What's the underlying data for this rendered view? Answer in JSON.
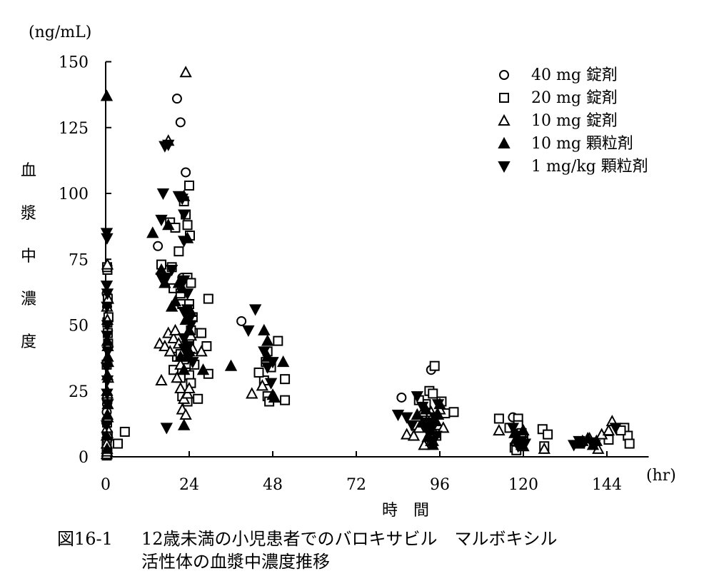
{
  "chart_data": {
    "type": "scatter",
    "title": "",
    "unit_label": "(ng/mL)",
    "xlabel": "時　間",
    "xunit": "(hr)",
    "ylabel": "血漿中濃度",
    "xlim": [
      0,
      156
    ],
    "ylim": [
      0,
      150
    ],
    "xticks": [
      0,
      24,
      48,
      72,
      96,
      120,
      144
    ],
    "yticks": [
      0,
      25,
      50,
      75,
      100,
      125,
      150
    ],
    "grid": false,
    "legend_position": "top-right",
    "series": [
      {
        "name": "40 mg 錠剤",
        "marker": "circle-open",
        "points": [
          [
            0.3,
            1
          ],
          [
            0.3,
            3
          ],
          [
            0.4,
            6
          ],
          [
            0.3,
            9
          ],
          [
            0.2,
            13
          ],
          [
            0.3,
            17
          ],
          [
            0.4,
            20
          ],
          [
            0.3,
            22
          ],
          [
            0.5,
            52
          ],
          [
            0.4,
            57
          ],
          [
            0.3,
            62
          ],
          [
            15,
            80
          ],
          [
            20.5,
            136
          ],
          [
            21.5,
            127
          ],
          [
            23,
            108
          ],
          [
            22,
            68
          ],
          [
            39,
            51.5
          ],
          [
            85,
            22.5
          ],
          [
            93.5,
            33
          ],
          [
            117,
            15
          ]
        ]
      },
      {
        "name": "20 mg 錠剤",
        "marker": "square-open",
        "points": [
          [
            0.3,
            0.5
          ],
          [
            0.4,
            1
          ],
          [
            0.5,
            2
          ],
          [
            0.3,
            4
          ],
          [
            0.6,
            8
          ],
          [
            0.4,
            13
          ],
          [
            0.5,
            22
          ],
          [
            0.3,
            35
          ],
          [
            0.7,
            43
          ],
          [
            0.6,
            47
          ],
          [
            0.5,
            51
          ],
          [
            0.8,
            53
          ],
          [
            0.6,
            60
          ],
          [
            0.5,
            71
          ],
          [
            0.4,
            72
          ],
          [
            3.5,
            5
          ],
          [
            5.5,
            9.5
          ],
          [
            16,
            73
          ],
          [
            18.5,
            89
          ],
          [
            20,
            87
          ],
          [
            21,
            78
          ],
          [
            22.5,
            97
          ],
          [
            23,
            92
          ],
          [
            23.5,
            88
          ],
          [
            24,
            103
          ],
          [
            24.2,
            84
          ],
          [
            19,
            72
          ],
          [
            19.5,
            64
          ],
          [
            21.5,
            62
          ],
          [
            23.5,
            68
          ],
          [
            24.5,
            66
          ],
          [
            22,
            58
          ],
          [
            24,
            58
          ],
          [
            25,
            53
          ],
          [
            26,
            47
          ],
          [
            27.5,
            47
          ],
          [
            29.5,
            60
          ],
          [
            24.5,
            48
          ],
          [
            24,
            44
          ],
          [
            23,
            40
          ],
          [
            19.5,
            33
          ],
          [
            20.5,
            38
          ],
          [
            21.5,
            39
          ],
          [
            22.5,
            37
          ],
          [
            23,
            32
          ],
          [
            24,
            31
          ],
          [
            24.5,
            28
          ],
          [
            25.5,
            35
          ],
          [
            26.5,
            22
          ],
          [
            29,
            42
          ],
          [
            29.5,
            31.5
          ],
          [
            22,
            23
          ],
          [
            23.5,
            21
          ],
          [
            21.5,
            30
          ],
          [
            46,
            36
          ],
          [
            46.5,
            40
          ],
          [
            47.5,
            34
          ],
          [
            49.5,
            44
          ],
          [
            51.5,
            29.5
          ],
          [
            51.5,
            21.5
          ],
          [
            46.5,
            23
          ],
          [
            45.5,
            29
          ],
          [
            44,
            32
          ],
          [
            47,
            21
          ],
          [
            93,
            25
          ],
          [
            94.5,
            34.5
          ],
          [
            94,
            24
          ],
          [
            96.5,
            21
          ],
          [
            100,
            17
          ],
          [
            92,
            20
          ],
          [
            90,
            21.5
          ],
          [
            89,
            12
          ],
          [
            95,
            8
          ],
          [
            93,
            6
          ],
          [
            97.5,
            16.5
          ],
          [
            113,
            14.5
          ],
          [
            116,
            11
          ],
          [
            117.5,
            3.5
          ],
          [
            118.5,
            14.5
          ],
          [
            118.5,
            12
          ],
          [
            119.5,
            9
          ],
          [
            120,
            7
          ],
          [
            118,
            2.5
          ],
          [
            125.5,
            10.5
          ],
          [
            126,
            4
          ],
          [
            127,
            8.5
          ],
          [
            149,
            11
          ],
          [
            150,
            8
          ],
          [
            150.5,
            5
          ],
          [
            148,
            10
          ],
          [
            144.5,
            6.5
          ]
        ]
      },
      {
        "name": "10 mg 錠剤",
        "marker": "triangle-open",
        "points": [
          [
            0.3,
            1
          ],
          [
            0.4,
            2
          ],
          [
            0.3,
            5
          ],
          [
            0.5,
            9
          ],
          [
            0.4,
            11
          ],
          [
            0.6,
            15
          ],
          [
            0.5,
            24
          ],
          [
            0.7,
            30
          ],
          [
            0.6,
            42
          ],
          [
            0.5,
            52
          ],
          [
            0.4,
            57
          ],
          [
            0.7,
            60
          ],
          [
            0.5,
            73
          ],
          [
            15.5,
            43
          ],
          [
            16,
            29
          ],
          [
            17,
            42
          ],
          [
            18,
            47
          ],
          [
            18.5,
            40
          ],
          [
            19.5,
            45
          ],
          [
            20,
            48
          ],
          [
            21,
            43
          ],
          [
            21.5,
            35
          ],
          [
            20.5,
            30
          ],
          [
            21.5,
            26
          ],
          [
            22.5,
            22
          ],
          [
            23.5,
            24
          ],
          [
            22,
            18
          ],
          [
            23,
            16
          ],
          [
            24,
            26
          ],
          [
            24.5,
            46
          ],
          [
            25,
            41
          ],
          [
            27.5,
            40
          ],
          [
            23,
            146
          ],
          [
            18,
            120
          ],
          [
            42,
            24
          ],
          [
            45,
            27
          ],
          [
            86.5,
            8.5
          ],
          [
            88.5,
            8
          ],
          [
            91.5,
            4.5
          ],
          [
            92.5,
            14
          ],
          [
            93.5,
            17
          ],
          [
            94.5,
            9
          ],
          [
            95.5,
            12
          ],
          [
            96,
            18
          ],
          [
            97,
            11
          ],
          [
            93.5,
            6
          ],
          [
            90,
            11
          ],
          [
            91,
            17
          ],
          [
            113,
            10
          ],
          [
            118,
            6
          ],
          [
            119.5,
            9
          ],
          [
            120,
            4
          ],
          [
            126,
            3
          ],
          [
            141.5,
            3
          ],
          [
            142.5,
            8.5
          ],
          [
            144.5,
            10
          ],
          [
            145.5,
            13.5
          ],
          [
            139,
            7
          ]
        ]
      },
      {
        "name": "10 mg 顆粒剤",
        "marker": "triangle-filled",
        "points": [
          [
            0.3,
            137
          ],
          [
            0.4,
            3
          ],
          [
            0.3,
            8
          ],
          [
            0.5,
            16
          ],
          [
            0.6,
            20
          ],
          [
            0.4,
            25
          ],
          [
            0.5,
            31
          ],
          [
            0.7,
            36
          ],
          [
            0.6,
            38
          ],
          [
            0.5,
            44
          ],
          [
            13.5,
            85
          ],
          [
            16,
            71
          ],
          [
            17,
            66
          ],
          [
            18,
            88
          ],
          [
            19,
            57
          ],
          [
            20,
            59
          ],
          [
            21,
            66
          ],
          [
            22,
            64
          ],
          [
            22.5,
            99
          ],
          [
            23.5,
            83
          ],
          [
            23,
            52
          ],
          [
            24,
            48
          ],
          [
            24.5,
            55
          ],
          [
            23,
            43
          ],
          [
            23.5,
            38
          ],
          [
            24,
            40
          ],
          [
            21.5,
            38
          ],
          [
            22.5,
            33
          ],
          [
            28,
            33
          ],
          [
            22.5,
            12
          ],
          [
            36,
            34.5
          ],
          [
            45.5,
            48
          ],
          [
            46.5,
            44
          ],
          [
            48,
            23.5
          ],
          [
            48.5,
            22.5
          ],
          [
            51,
            36
          ],
          [
            46.5,
            38
          ],
          [
            89.5,
            16
          ],
          [
            91,
            13
          ],
          [
            92,
            18
          ],
          [
            92.5,
            7.5
          ],
          [
            93.5,
            10
          ],
          [
            94,
            6
          ],
          [
            94.5,
            13.5
          ],
          [
            95.5,
            16
          ],
          [
            96,
            20
          ],
          [
            94,
            4.5
          ],
          [
            117.5,
            9
          ],
          [
            118,
            7
          ],
          [
            119,
            6
          ],
          [
            119.5,
            4.5
          ],
          [
            120,
            10
          ],
          [
            136,
            5
          ],
          [
            137,
            6
          ],
          [
            138.5,
            7
          ],
          [
            140,
            4.5
          ],
          [
            141,
            6
          ]
        ]
      },
      {
        "name": "1 mg/kg 顆粒剤",
        "marker": "triangle-down-filled",
        "points": [
          [
            0.3,
            85
          ],
          [
            0.4,
            83
          ],
          [
            0.3,
            65
          ],
          [
            0.5,
            62
          ],
          [
            0.4,
            57
          ],
          [
            0.5,
            50
          ],
          [
            0.4,
            46
          ],
          [
            0.6,
            40
          ],
          [
            0.3,
            34
          ],
          [
            0.5,
            29
          ],
          [
            0.4,
            24
          ],
          [
            0.6,
            20
          ],
          [
            0.3,
            12
          ],
          [
            17,
            118
          ],
          [
            18,
            118.5
          ],
          [
            16.5,
            100
          ],
          [
            16,
            90
          ],
          [
            21,
            99
          ],
          [
            22,
            98
          ],
          [
            22.5,
            92
          ],
          [
            22.5,
            82
          ],
          [
            16,
            68
          ],
          [
            17.5,
            68
          ],
          [
            19,
            71
          ],
          [
            22.5,
            67
          ],
          [
            23.5,
            62
          ],
          [
            22.5,
            55
          ],
          [
            23.5,
            56
          ],
          [
            24,
            52
          ],
          [
            24.5,
            50
          ],
          [
            22.5,
            45
          ],
          [
            23.5,
            42
          ],
          [
            22.5,
            41
          ],
          [
            24,
            38
          ],
          [
            25,
            36
          ],
          [
            17.5,
            11
          ],
          [
            41,
            48
          ],
          [
            43,
            56
          ],
          [
            45.5,
            40
          ],
          [
            46.5,
            34
          ],
          [
            47.5,
            28
          ],
          [
            48,
            36
          ],
          [
            84,
            16
          ],
          [
            86.5,
            15
          ],
          [
            88,
            12
          ],
          [
            89.5,
            23
          ],
          [
            91,
            19
          ],
          [
            92,
            11
          ],
          [
            93.5,
            10
          ],
          [
            94.5,
            15
          ],
          [
            95,
            8
          ],
          [
            93,
            13
          ],
          [
            95.5,
            20
          ],
          [
            117,
            11
          ],
          [
            118,
            8
          ],
          [
            118.5,
            4
          ],
          [
            119.5,
            6
          ],
          [
            120.5,
            5
          ],
          [
            134.5,
            4.5
          ],
          [
            136,
            6
          ],
          [
            137.5,
            5.5
          ],
          [
            139.5,
            5.5
          ],
          [
            140.5,
            4.5
          ],
          [
            146.5,
            11
          ]
        ]
      }
    ]
  },
  "caption": {
    "label": "図16-1",
    "line1": "12歳未満の小児患者でのバロキサビル　マルボキシル",
    "line2": "活性体の血漿中濃度推移"
  }
}
